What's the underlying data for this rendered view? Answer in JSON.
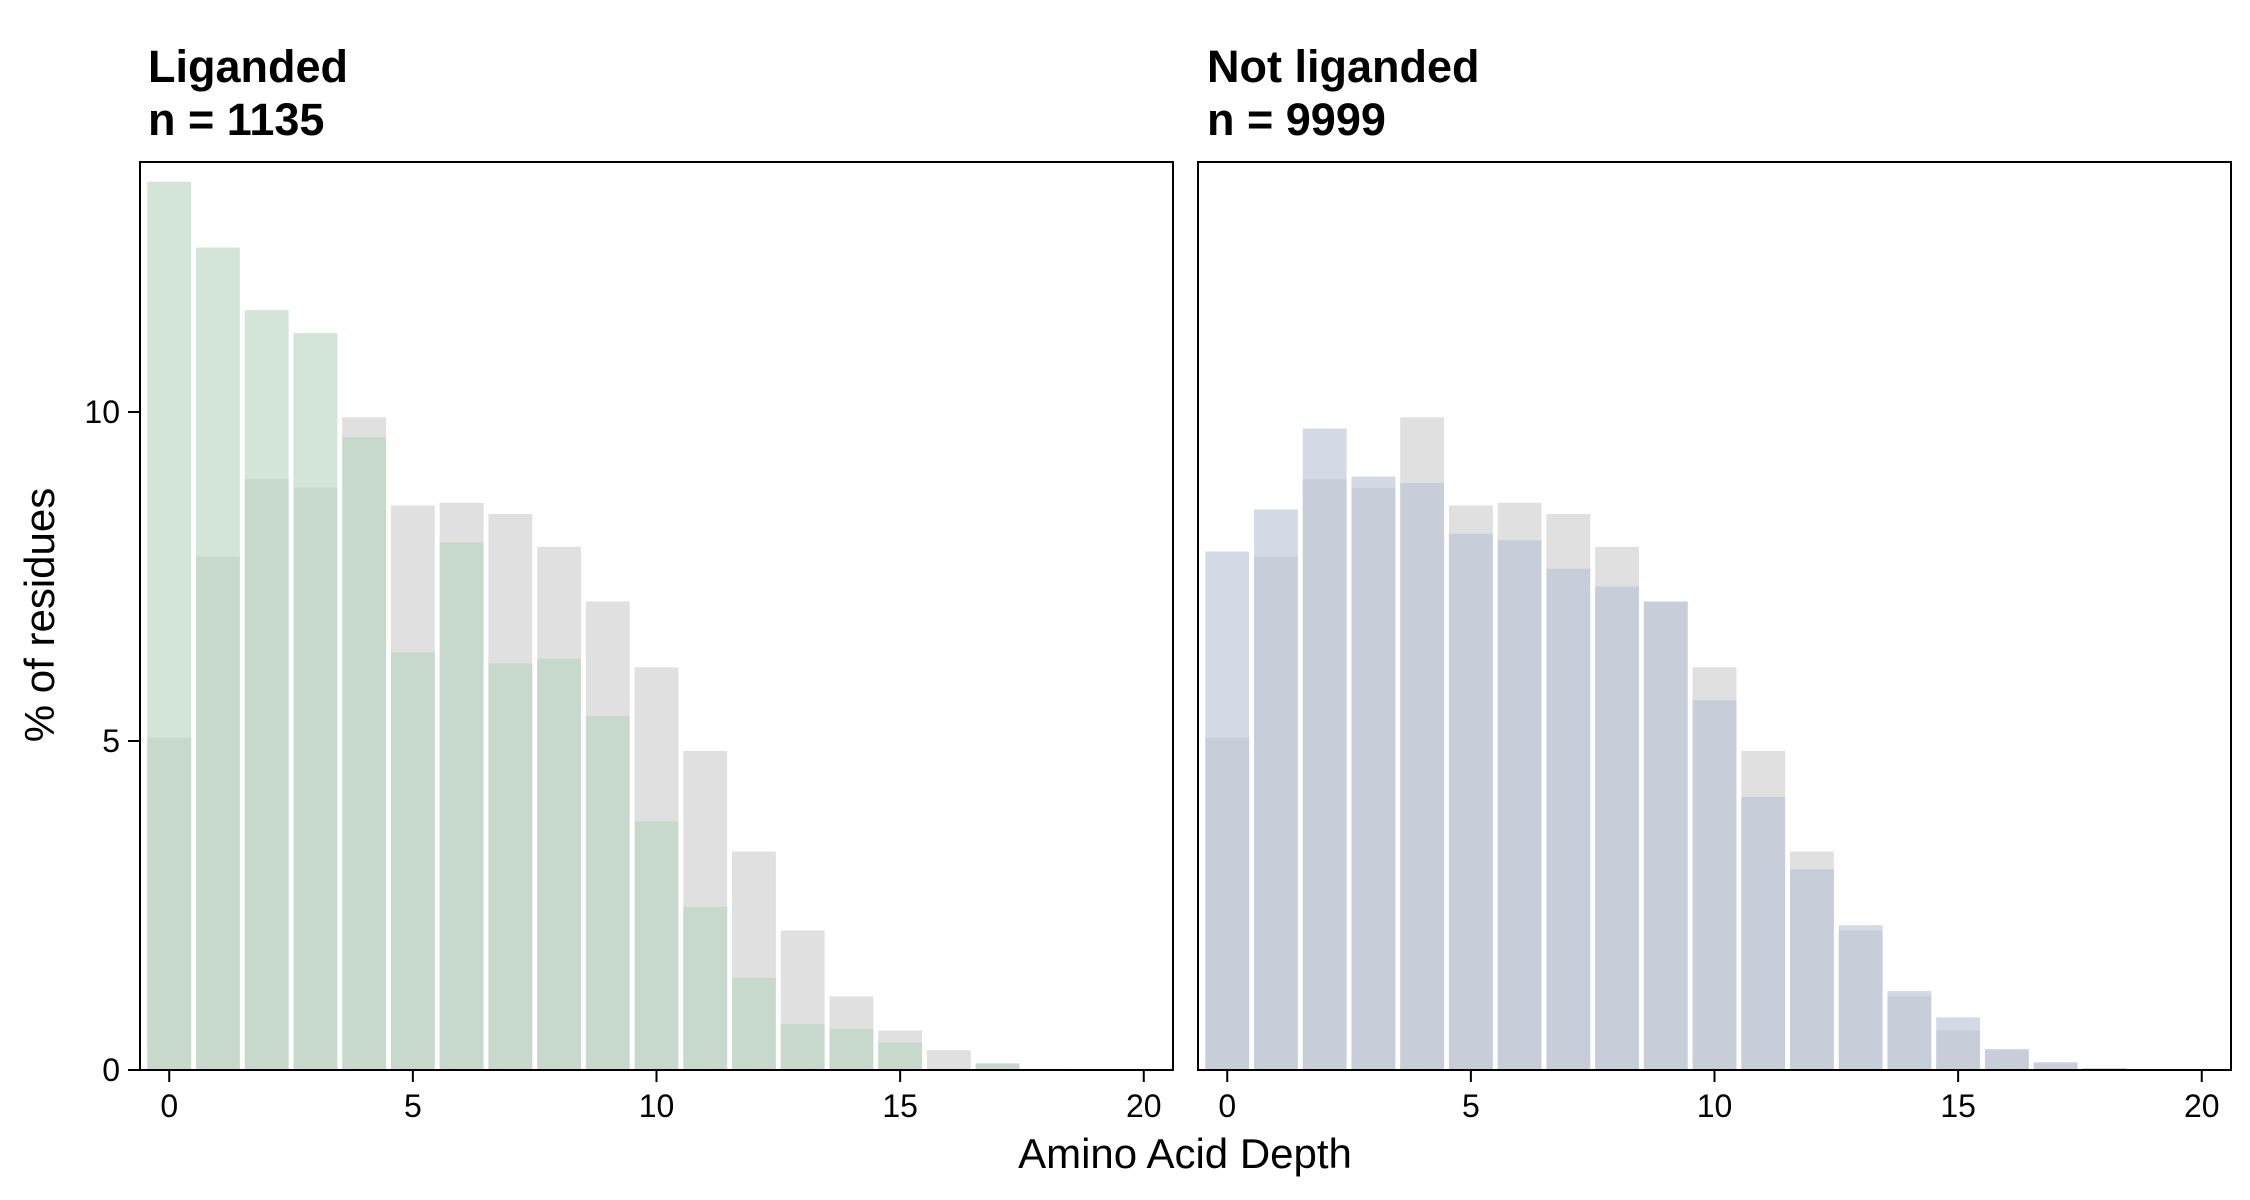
{
  "chart_data": {
    "type": "bar",
    "xlabel": "Amino Acid Depth",
    "ylabel": "% of residues",
    "xlim": [
      -0.6,
      20.6
    ],
    "ylim": [
      0,
      13.8
    ],
    "xticks": [
      0,
      5,
      10,
      15,
      20
    ],
    "yticks": [
      0,
      5,
      10
    ],
    "grid": false,
    "colors": {
      "background_bars": "#d3d3d3",
      "liganded": "#b5d3be",
      "not_liganded": "#b6c1d5",
      "frame": "#000000"
    },
    "x": [
      0,
      1,
      2,
      3,
      4,
      5,
      6,
      7,
      8,
      9,
      10,
      11,
      12,
      13,
      14,
      15,
      16,
      17,
      18,
      19,
      20
    ],
    "panels": [
      {
        "title_line1": "Liganded",
        "title_line2": "n = 1135",
        "series": [
          {
            "name": "",
            "role": "background",
            "values": [
              5.05,
              7.8,
              8.98,
              8.85,
              9.92,
              8.58,
              8.62,
              8.45,
              7.95,
              7.12,
              6.12,
              4.85,
              3.32,
              2.12,
              1.12,
              0.6,
              0.3,
              0.1,
              0.02,
              0,
              0
            ]
          },
          {
            "name": "",
            "role": "foreground",
            "values": [
              13.5,
              12.5,
              11.55,
              11.2,
              9.62,
              6.35,
              8.02,
              6.18,
              6.25,
              5.38,
              3.78,
              2.48,
              1.4,
              0.7,
              0.62,
              0.42,
              0.02,
              0.1,
              0,
              0,
              0
            ]
          }
        ]
      },
      {
        "title_line1": "Not liganded",
        "title_line2": "n = 9999",
        "series": [
          {
            "name": "",
            "role": "background",
            "values": [
              5.05,
              7.8,
              8.98,
              8.85,
              9.92,
              8.58,
              8.62,
              8.45,
              7.95,
              7.12,
              6.12,
              4.85,
              3.32,
              2.12,
              1.12,
              0.6,
              0.3,
              0.1,
              0.02,
              0,
              0
            ]
          },
          {
            "name": "",
            "role": "foreground",
            "values": [
              7.88,
              8.52,
              9.75,
              9.02,
              8.92,
              8.15,
              8.05,
              7.62,
              7.35,
              7.12,
              5.62,
              4.15,
              3.05,
              2.2,
              1.2,
              0.8,
              0.32,
              0.12,
              0.03,
              0,
              0
            ]
          }
        ]
      }
    ]
  }
}
